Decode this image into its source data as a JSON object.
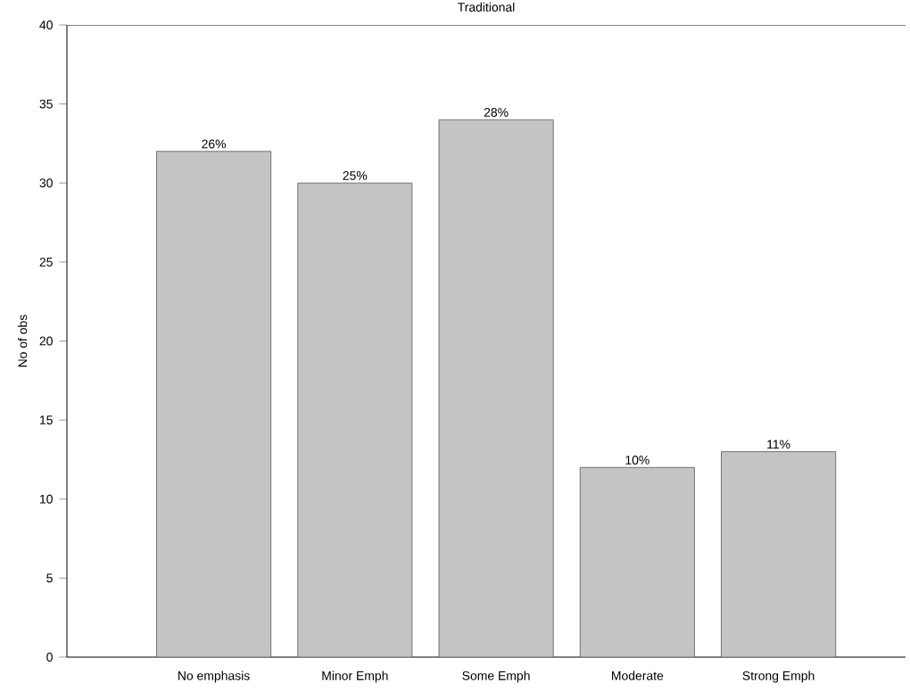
{
  "chart_data": {
    "type": "bar",
    "title": "Traditional",
    "ylabel": "No of obs",
    "categories": [
      "No emphasis",
      "Minor Emph",
      "Some Emph",
      "Moderate",
      "Strong Emph"
    ],
    "values": [
      32,
      30,
      34,
      12,
      13
    ],
    "annotations": [
      {
        "text": "26%",
        "x": "No emphasis",
        "y": 32
      },
      {
        "text": "25%",
        "x": "Minor Emph",
        "y": 30
      },
      {
        "text": "28%",
        "x": "Some Emph",
        "y": 34
      },
      {
        "text": "10%",
        "x": "Moderate",
        "y": 12
      },
      {
        "text": "11%",
        "x": "Strong Emph",
        "y": 13
      }
    ],
    "color": "#c4c4c4",
    "ylim": [
      0,
      40
    ],
    "yticks": [
      0,
      5,
      10,
      15,
      20,
      25,
      30,
      35,
      40
    ],
    "grid": false
  }
}
